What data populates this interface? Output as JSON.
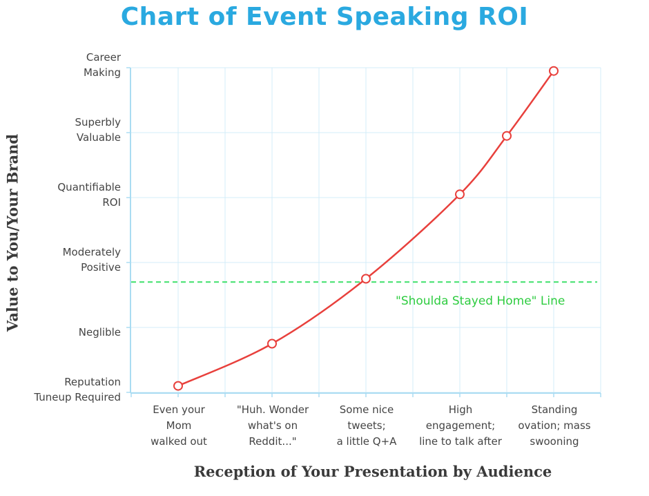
{
  "chart_data": {
    "type": "line",
    "title": "Chart of Event Speaking ROI",
    "xlabel": "Reception of Your Presentation by Audience",
    "ylabel": "Value to You/Your Brand",
    "x_tick_labels": [
      [
        "Even your",
        "Mom",
        "walked out"
      ],
      [
        "\"Huh. Wonder",
        "what's on",
        "Reddit...\""
      ],
      [
        "Some nice",
        "tweets;",
        "a little Q+A"
      ],
      [
        "High",
        "engagement;",
        "line to talk after"
      ],
      [
        "Standing",
        "ovation; mass",
        "swooning"
      ]
    ],
    "y_tick_labels": [
      [
        "Reputation",
        "Tuneup Required"
      ],
      [
        "Neglible"
      ],
      [
        "Moderately",
        "Positive"
      ],
      [
        "Quantifiable",
        "ROI"
      ],
      [
        "Superbly",
        "Valuable"
      ],
      [
        "Career",
        "Making"
      ]
    ],
    "xlim": [
      0.5,
      5.5
    ],
    "ylim": [
      0,
      5
    ],
    "grid": true,
    "series": [
      {
        "color": "#e8403c",
        "marker": "open-circle",
        "x": [
          1,
          2,
          3,
          4,
          4.5,
          5
        ],
        "y": [
          0.1,
          0.75,
          1.75,
          3.05,
          3.95,
          4.95
        ]
      }
    ],
    "reference_line": {
      "label": "\"Shoulda Stayed Home\" Line",
      "y": 1.7,
      "color": "#3ee06a",
      "style": "dashed"
    }
  }
}
